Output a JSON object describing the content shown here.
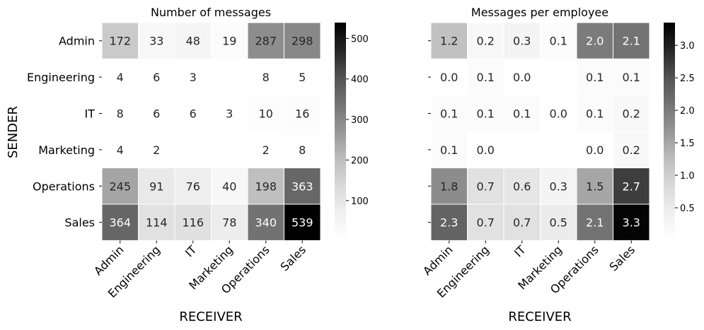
{
  "chart_data": [
    {
      "type": "heatmap",
      "title": "Number of messages",
      "xlabel": "RECEIVER",
      "ylabel": "SENDER",
      "x_categories": [
        "Admin",
        "Engineering",
        "IT",
        "Marketing",
        "Operations",
        "Sales"
      ],
      "y_categories": [
        "Admin",
        "Engineering",
        "IT",
        "Marketing",
        "Operations",
        "Sales"
      ],
      "values": [
        [
          172,
          33,
          48,
          19,
          287,
          298
        ],
        [
          4,
          6,
          3,
          null,
          8,
          5
        ],
        [
          8,
          6,
          6,
          3,
          10,
          16
        ],
        [
          4,
          2,
          null,
          null,
          2,
          8
        ],
        [
          245,
          91,
          76,
          40,
          198,
          363
        ],
        [
          364,
          114,
          116,
          78,
          340,
          539
        ]
      ],
      "annotations": [
        [
          "172",
          "33",
          "48",
          "19",
          "287",
          "298"
        ],
        [
          "4",
          "6",
          "3",
          "",
          "8",
          "5"
        ],
        [
          "8",
          "6",
          "6",
          "3",
          "10",
          "16"
        ],
        [
          "4",
          "2",
          "",
          "",
          "2",
          "8"
        ],
        [
          "245",
          "91",
          "76",
          "40",
          "198",
          "363"
        ],
        [
          "364",
          "114",
          "116",
          "78",
          "340",
          "539"
        ]
      ],
      "colormap": "Greys",
      "vmin": 2,
      "vmax": 539,
      "colorbar_ticks": [
        100,
        200,
        300,
        400,
        500
      ],
      "colorbar_tick_labels": [
        "100",
        "200",
        "300",
        "400",
        "500"
      ]
    },
    {
      "type": "heatmap",
      "title": "Messages per employee",
      "xlabel": "RECEIVER",
      "ylabel": "",
      "x_categories": [
        "Admin",
        "Engineering",
        "IT",
        "Marketing",
        "Operations",
        "Sales"
      ],
      "y_categories": [
        "",
        "",
        "",
        "",
        "",
        ""
      ],
      "values": [
        [
          1.2,
          0.2,
          0.3,
          0.1,
          2.0,
          2.1
        ],
        [
          0.0,
          0.1,
          0.0,
          null,
          0.1,
          0.1
        ],
        [
          0.1,
          0.1,
          0.1,
          0.0,
          0.1,
          0.2
        ],
        [
          0.1,
          0.0,
          null,
          null,
          0.0,
          0.2
        ],
        [
          1.8,
          0.7,
          0.6,
          0.3,
          1.5,
          2.7
        ],
        [
          2.3,
          0.7,
          0.7,
          0.5,
          2.1,
          3.3
        ]
      ],
      "annotations": [
        [
          "1.2",
          "0.2",
          "0.3",
          "0.1",
          "2.0",
          "2.1"
        ],
        [
          "0.0",
          "0.1",
          "0.0",
          "",
          "0.1",
          "0.1"
        ],
        [
          "0.1",
          "0.1",
          "0.1",
          "0.0",
          "0.1",
          "0.2"
        ],
        [
          "0.1",
          "0.0",
          "",
          "",
          "0.0",
          "0.2"
        ],
        [
          "1.8",
          "0.7",
          "0.6",
          "0.3",
          "1.5",
          "2.7"
        ],
        [
          "2.3",
          "0.7",
          "0.7",
          "0.5",
          "2.1",
          "3.3"
        ]
      ],
      "colormap": "Greys",
      "vmin": 0.0,
      "vmax": 3.35,
      "colorbar_ticks": [
        0.5,
        1.0,
        1.5,
        2.0,
        2.5,
        3.0
      ],
      "colorbar_tick_labels": [
        "0.5",
        "1.0",
        "1.5",
        "2.0",
        "2.5",
        "3.0"
      ]
    }
  ]
}
